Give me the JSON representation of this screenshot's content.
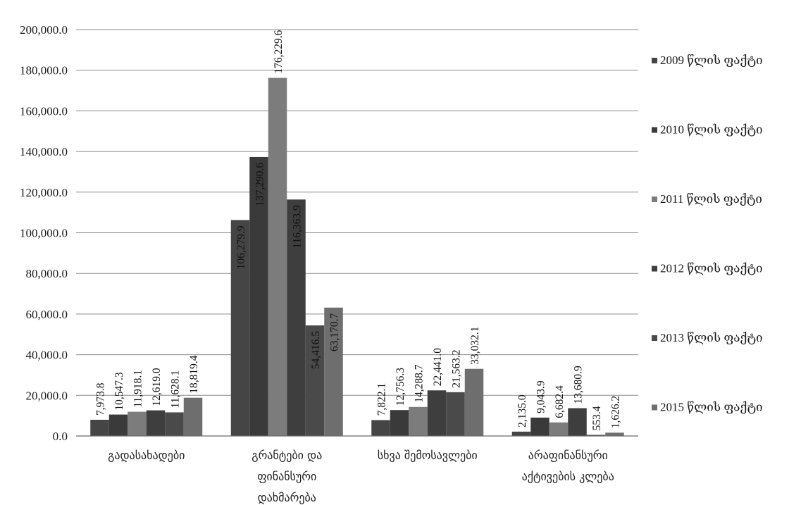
{
  "chart_data": {
    "type": "bar",
    "categories": [
      [
        "გადასახადები"
      ],
      [
        "გრანტები და",
        "ფინანსური",
        "დახმარება"
      ],
      [
        "სხვა შემოსავლები"
      ],
      [
        "არაფინანსური",
        "აქტივების კლება"
      ]
    ],
    "series": [
      {
        "name": "2009 წლის ფაქტი",
        "color": "#454545",
        "values": [
          7973.8,
          106279.9,
          7822.1,
          2135.0
        ]
      },
      {
        "name": "2010 წლის ფაქტი",
        "color": "#3a3a3a",
        "values": [
          10547.3,
          137290.6,
          12756.3,
          9043.9
        ]
      },
      {
        "name": "2011 წლის ფაქტი",
        "color": "#7c7c7c",
        "values": [
          11918.1,
          176229.6,
          14288.7,
          6682.4
        ]
      },
      {
        "name": "2012 წლის ფაქტი",
        "color": "#3e3e3e",
        "values": [
          12619.0,
          116363.9,
          22441.0,
          13680.9
        ]
      },
      {
        "name": "2013 წლის ფაქტი",
        "color": "#4a4a4a",
        "values": [
          11628.1,
          54416.5,
          21563.2,
          553.4
        ]
      },
      {
        "name": "2015 წლის ფაქტი",
        "color": "#6e6e6e",
        "values": [
          18819.4,
          63170.7,
          33032.1,
          1626.2
        ]
      }
    ],
    "data_labels": [
      [
        "7,973.8",
        "106,279.9",
        "7,822.1",
        "2,135.0"
      ],
      [
        "10,547.3",
        "137,290.6",
        "12,756.3",
        "9,043.9"
      ],
      [
        "11,918.1",
        "176,229.6",
        "14,288.7",
        "6,682.4"
      ],
      [
        "12,619.0",
        "116,363.9",
        "22,441.0",
        "13,680.9"
      ],
      [
        "11,628.1",
        "54,416.5",
        "21,563.2",
        "553.4"
      ],
      [
        "18,819.4",
        "63,170.7",
        "33,032.1",
        "1,626.2"
      ]
    ],
    "y_ticks": [
      0,
      20000,
      40000,
      60000,
      80000,
      100000,
      120000,
      140000,
      160000,
      180000,
      200000
    ],
    "y_tick_labels": [
      "0.0",
      "20,000.0",
      "40,000.0",
      "60,000.0",
      "80,000.0",
      "100,000.0",
      "120,000.0",
      "140,000.0",
      "160,000.0",
      "180,000.0",
      "200,000.0"
    ],
    "ylim": [
      0,
      200000
    ],
    "grid": true,
    "legend": "right"
  }
}
